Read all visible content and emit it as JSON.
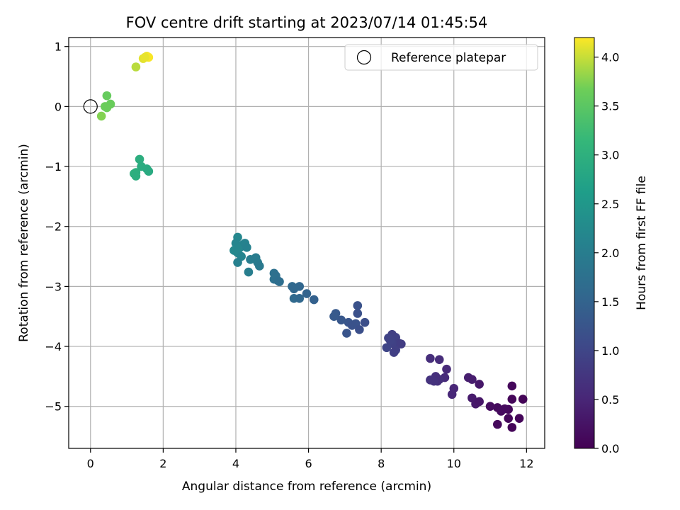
{
  "chart_data": {
    "type": "scatter",
    "title": "FOV centre drift starting at 2023/07/14 01:45:54",
    "xlabel": "Angular distance from reference (arcmin)",
    "ylabel": "Rotation from reference (arcmin)",
    "xlim": [
      -0.6,
      12.5
    ],
    "ylim": [
      -5.7,
      1.15
    ],
    "xticks": [
      0,
      2,
      4,
      6,
      8,
      10,
      12
    ],
    "yticks": [
      1,
      0,
      -1,
      -2,
      -3,
      -4,
      -5
    ],
    "grid": true,
    "legend": {
      "location": "top-right",
      "entries": [
        "Reference platepar"
      ]
    },
    "reference_point": {
      "x": 0,
      "y": 0
    },
    "colorbar": {
      "label": "Hours from first FF file",
      "colormap": "viridis",
      "range": [
        0.0,
        4.2
      ],
      "ticks": [
        "0.0",
        "0.5",
        "1.0",
        "1.5",
        "2.0",
        "2.5",
        "3.0",
        "3.5",
        "4.0"
      ]
    },
    "points": [
      {
        "x": 11.6,
        "y": -4.66,
        "h": 0.1
      },
      {
        "x": 11.9,
        "y": -4.88,
        "h": 0.05
      },
      {
        "x": 11.6,
        "y": -4.88,
        "h": 0.08
      },
      {
        "x": 11.2,
        "y": -5.02,
        "h": 0.12
      },
      {
        "x": 11.0,
        "y": -5.0,
        "h": 0.15
      },
      {
        "x": 11.5,
        "y": -5.05,
        "h": 0.1
      },
      {
        "x": 11.4,
        "y": -5.04,
        "h": 0.13
      },
      {
        "x": 11.8,
        "y": -5.2,
        "h": 0.07
      },
      {
        "x": 11.5,
        "y": -5.2,
        "h": 0.09
      },
      {
        "x": 11.2,
        "y": -5.3,
        "h": 0.11
      },
      {
        "x": 11.6,
        "y": -5.35,
        "h": 0.06
      },
      {
        "x": 11.3,
        "y": -5.08,
        "h": 0.14
      },
      {
        "x": 10.7,
        "y": -4.63,
        "h": 0.3
      },
      {
        "x": 10.4,
        "y": -4.52,
        "h": 0.4
      },
      {
        "x": 10.5,
        "y": -4.55,
        "h": 0.38
      },
      {
        "x": 10.5,
        "y": -4.86,
        "h": 0.35
      },
      {
        "x": 10.6,
        "y": -4.96,
        "h": 0.32
      },
      {
        "x": 10.7,
        "y": -4.92,
        "h": 0.28
      },
      {
        "x": 10.0,
        "y": -4.7,
        "h": 0.5
      },
      {
        "x": 9.95,
        "y": -4.8,
        "h": 0.52
      },
      {
        "x": 9.8,
        "y": -4.38,
        "h": 0.55
      },
      {
        "x": 9.6,
        "y": -4.22,
        "h": 0.6
      },
      {
        "x": 9.35,
        "y": -4.2,
        "h": 0.62
      },
      {
        "x": 9.5,
        "y": -4.5,
        "h": 0.65
      },
      {
        "x": 9.55,
        "y": -4.58,
        "h": 0.66
      },
      {
        "x": 9.35,
        "y": -4.56,
        "h": 0.7
      },
      {
        "x": 9.75,
        "y": -4.52,
        "h": 0.58
      },
      {
        "x": 9.6,
        "y": -4.55,
        "h": 0.63
      },
      {
        "x": 9.45,
        "y": -4.58,
        "h": 0.68
      },
      {
        "x": 8.3,
        "y": -3.8,
        "h": 0.9
      },
      {
        "x": 8.2,
        "y": -3.86,
        "h": 0.95
      },
      {
        "x": 8.4,
        "y": -3.85,
        "h": 0.92
      },
      {
        "x": 8.5,
        "y": -3.95,
        "h": 0.88
      },
      {
        "x": 8.3,
        "y": -3.95,
        "h": 0.93
      },
      {
        "x": 8.15,
        "y": -4.02,
        "h": 0.98
      },
      {
        "x": 8.4,
        "y": -4.06,
        "h": 0.91
      },
      {
        "x": 8.35,
        "y": -4.1,
        "h": 0.89
      },
      {
        "x": 8.55,
        "y": -3.96,
        "h": 0.86
      },
      {
        "x": 8.25,
        "y": -3.9,
        "h": 0.96
      },
      {
        "x": 7.35,
        "y": -3.32,
        "h": 1.2
      },
      {
        "x": 7.35,
        "y": -3.45,
        "h": 1.18
      },
      {
        "x": 7.55,
        "y": -3.6,
        "h": 1.15
      },
      {
        "x": 7.3,
        "y": -3.62,
        "h": 1.22
      },
      {
        "x": 7.4,
        "y": -3.72,
        "h": 1.16
      },
      {
        "x": 7.1,
        "y": -3.6,
        "h": 1.25
      },
      {
        "x": 7.05,
        "y": -3.78,
        "h": 1.24
      },
      {
        "x": 6.9,
        "y": -3.56,
        "h": 1.28
      },
      {
        "x": 6.75,
        "y": -3.45,
        "h": 1.32
      },
      {
        "x": 6.7,
        "y": -3.5,
        "h": 1.34
      },
      {
        "x": 7.2,
        "y": -3.65,
        "h": 1.21
      },
      {
        "x": 5.75,
        "y": -3.0,
        "h": 1.55
      },
      {
        "x": 5.55,
        "y": -3.0,
        "h": 1.6
      },
      {
        "x": 5.6,
        "y": -3.04,
        "h": 1.58
      },
      {
        "x": 5.6,
        "y": -3.2,
        "h": 1.62
      },
      {
        "x": 5.75,
        "y": -3.2,
        "h": 1.57
      },
      {
        "x": 5.95,
        "y": -3.12,
        "h": 1.5
      },
      {
        "x": 6.15,
        "y": -3.22,
        "h": 1.45
      },
      {
        "x": 5.05,
        "y": -2.78,
        "h": 1.75
      },
      {
        "x": 5.1,
        "y": -2.82,
        "h": 1.73
      },
      {
        "x": 5.05,
        "y": -2.88,
        "h": 1.76
      },
      {
        "x": 5.15,
        "y": -2.9,
        "h": 1.72
      },
      {
        "x": 5.2,
        "y": -2.92,
        "h": 1.7
      },
      {
        "x": 4.05,
        "y": -2.18,
        "h": 2.2
      },
      {
        "x": 4.0,
        "y": -2.28,
        "h": 2.15
      },
      {
        "x": 4.2,
        "y": -2.3,
        "h": 2.12
      },
      {
        "x": 3.95,
        "y": -2.4,
        "h": 2.22
      },
      {
        "x": 4.1,
        "y": -2.36,
        "h": 2.18
      },
      {
        "x": 4.25,
        "y": -2.28,
        "h": 2.1
      },
      {
        "x": 4.3,
        "y": -2.35,
        "h": 2.08
      },
      {
        "x": 4.05,
        "y": -2.44,
        "h": 2.19
      },
      {
        "x": 4.15,
        "y": -2.5,
        "h": 2.14
      },
      {
        "x": 4.4,
        "y": -2.55,
        "h": 2.0
      },
      {
        "x": 4.55,
        "y": -2.52,
        "h": 1.98
      },
      {
        "x": 4.6,
        "y": -2.6,
        "h": 1.95
      },
      {
        "x": 4.65,
        "y": -2.66,
        "h": 1.92
      },
      {
        "x": 4.05,
        "y": -2.6,
        "h": 2.05
      },
      {
        "x": 4.35,
        "y": -2.76,
        "h": 2.02
      },
      {
        "x": 1.35,
        "y": -0.88,
        "h": 2.95
      },
      {
        "x": 1.4,
        "y": -1.0,
        "h": 2.92
      },
      {
        "x": 1.25,
        "y": -1.1,
        "h": 2.97
      },
      {
        "x": 1.2,
        "y": -1.12,
        "h": 2.98
      },
      {
        "x": 1.25,
        "y": -1.16,
        "h": 2.96
      },
      {
        "x": 1.55,
        "y": -1.04,
        "h": 2.9
      },
      {
        "x": 1.6,
        "y": -1.08,
        "h": 2.88
      },
      {
        "x": 0.45,
        "y": 0.18,
        "h": 3.6
      },
      {
        "x": 0.4,
        "y": 0.0,
        "h": 3.65
      },
      {
        "x": 0.55,
        "y": 0.04,
        "h": 3.62
      },
      {
        "x": 0.45,
        "y": -0.02,
        "h": 3.64
      },
      {
        "x": 0.3,
        "y": -0.16,
        "h": 3.75
      },
      {
        "x": 1.25,
        "y": 0.66,
        "h": 3.95
      },
      {
        "x": 1.45,
        "y": 0.8,
        "h": 4.1
      },
      {
        "x": 1.55,
        "y": 0.84,
        "h": 4.15
      },
      {
        "x": 1.6,
        "y": 0.82,
        "h": 4.18
      },
      {
        "x": 1.5,
        "y": 0.82,
        "h": 4.12
      }
    ]
  }
}
